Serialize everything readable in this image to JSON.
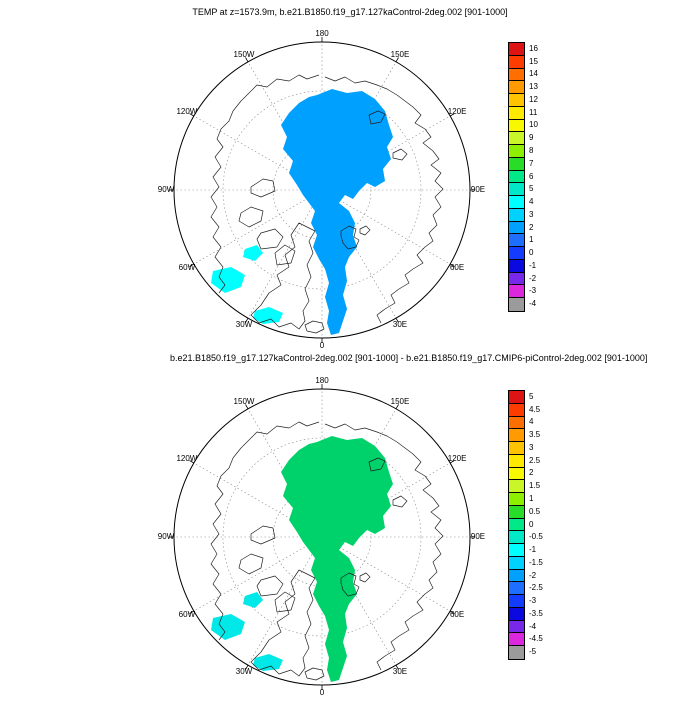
{
  "figure": {
    "background": "#ffffff",
    "description": "Two north-polar stereographic filled-contour maps with vertical labelbars"
  },
  "chart_data": [
    {
      "type": "heatmap",
      "projection": "north-polar-stereographic",
      "title": "TEMP at z=1573.9m, b.e21.B1850.f19_g17.127kaControl-2deg.002 [901-1000]",
      "ring_labels": [
        "180",
        "150E",
        "120E",
        "90E",
        "60E",
        "30E",
        "0",
        "30W",
        "60W",
        "90W",
        "120W",
        "150W"
      ],
      "colorbar_levels": [
        "16",
        "15",
        "14",
        "13",
        "12",
        "11",
        "10",
        "9",
        "8",
        "7",
        "6",
        "5",
        "4",
        "3",
        "2",
        "1",
        "0",
        "-1",
        "-2",
        "-3",
        "-4"
      ],
      "colorbar_colors": [
        "#dc1414",
        "#ff3c00",
        "#ff6e00",
        "#ff9a00",
        "#ffc300",
        "#ffe900",
        "#f8f800",
        "#c8f628",
        "#8cf000",
        "#28dc28",
        "#00e887",
        "#00e8c8",
        "#00ffff",
        "#00d2ff",
        "#00a0ff",
        "#1e6eff",
        "#143cff",
        "#0a0ae0",
        "#7828e8",
        "#dc28dc",
        "#9b9b9b"
      ],
      "regions": [
        {
          "name": "central-arctic-fill",
          "value_range": [
            2,
            3
          ],
          "color": "#00a0ff"
        },
        {
          "name": "labrador-sea-patches",
          "value_range": [
            4,
            5
          ],
          "color": "#00ffff"
        }
      ],
      "legend_position": "right",
      "grid": "dotted-graticule"
    },
    {
      "type": "heatmap",
      "projection": "north-polar-stereographic",
      "title": "b.e21.B1850.f19_g17.127kaControl-2deg.002 [901-1000] - b.e21.B1850.f19_g17.CMIP6-piControl-2deg.002 [901-1000]",
      "ring_labels": [
        "180",
        "150E",
        "120E",
        "90E",
        "60E",
        "30E",
        "0",
        "30W",
        "60W",
        "90W",
        "120W",
        "150W"
      ],
      "colorbar_levels": [
        "5",
        "4.5",
        "4",
        "3.5",
        "3",
        "2.5",
        "2",
        "1.5",
        "1",
        "0.5",
        "0",
        "-0.5",
        "-1",
        "-1.5",
        "-2",
        "-2.5",
        "-3",
        "-3.5",
        "-4",
        "-4.5",
        "-5"
      ],
      "colorbar_colors": [
        "#dc1414",
        "#ff3c00",
        "#ff6e00",
        "#ff9a00",
        "#ffc300",
        "#ffe900",
        "#f8f800",
        "#c8f628",
        "#8cf000",
        "#28dc28",
        "#00e887",
        "#00e8c8",
        "#00ffff",
        "#00d2ff",
        "#00a0ff",
        "#1e6eff",
        "#143cff",
        "#0a0ae0",
        "#7828e8",
        "#dc28dc",
        "#9b9b9b"
      ],
      "regions": [
        {
          "name": "central-arctic-fill",
          "value_range": [
            0,
            1
          ],
          "color": "#00d26b"
        },
        {
          "name": "labrador-sea-patches",
          "value_range": [
            -1,
            -0.5
          ],
          "color": "#00e8e8"
        }
      ],
      "legend_position": "right",
      "grid": "dotted-graticule"
    }
  ]
}
